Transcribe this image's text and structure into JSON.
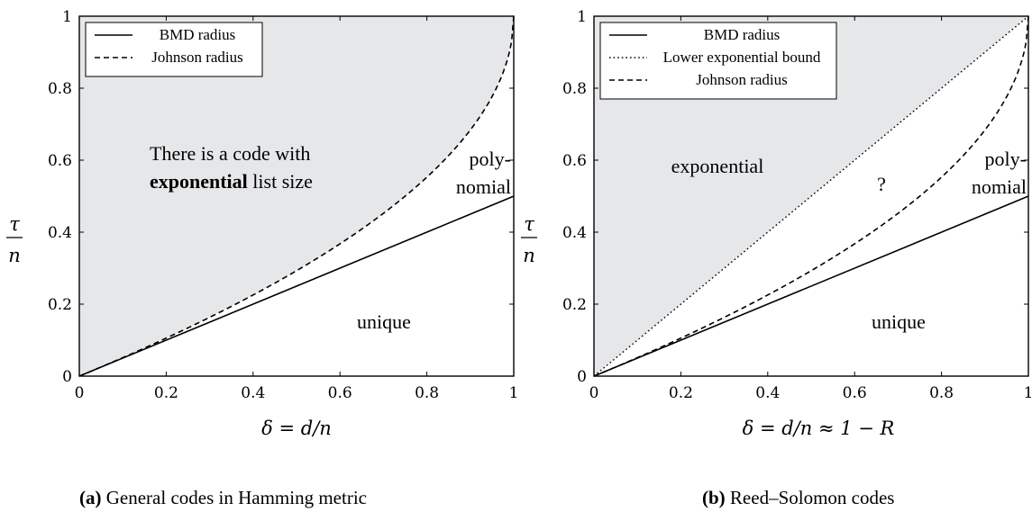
{
  "chart_data": [
    {
      "id": "a",
      "type": "line",
      "caption_tag": "(a)",
      "caption_text": "General codes in Hamming metric",
      "xlabel": "δ = d/n",
      "ylabel_num": "τ",
      "ylabel_den": "n",
      "xlim": [
        0,
        1
      ],
      "ylim": [
        0,
        1
      ],
      "x_ticks": [
        "0",
        "0.2",
        "0.4",
        "0.6",
        "0.8",
        "1"
      ],
      "y_ticks": [
        "0",
        "0.2",
        "0.4",
        "0.6",
        "0.8",
        "1"
      ],
      "legend": [
        "BMD radius",
        "Johnson radius"
      ],
      "legend_position": "top-left",
      "series": [
        {
          "name": "BMD radius",
          "style": "solid",
          "x": [
            0,
            1
          ],
          "y": [
            0,
            0.5
          ]
        },
        {
          "name": "Johnson radius",
          "style": "dashed",
          "function": "1 - sqrt(1 - x)"
        }
      ],
      "shaded_region": "above Johnson radius",
      "annotations": {
        "exponential_line1": "There is a code with",
        "exponential_bold": "exponential",
        "exponential_rest": " list size",
        "poly_line1": "poly-",
        "poly_line2": "nomial",
        "unique": "unique"
      }
    },
    {
      "id": "b",
      "type": "line",
      "caption_tag": "(b)",
      "caption_text": "Reed–Solomon codes",
      "xlabel": "δ = d/n ≈ 1 − R",
      "ylabel_num": "τ",
      "ylabel_den": "n",
      "xlim": [
        0,
        1
      ],
      "ylim": [
        0,
        1
      ],
      "x_ticks": [
        "0",
        "0.2",
        "0.4",
        "0.6",
        "0.8",
        "1"
      ],
      "y_ticks": [
        "0",
        "0.2",
        "0.4",
        "0.6",
        "0.8",
        "1"
      ],
      "legend": [
        "BMD radius",
        "Lower exponential bound",
        "Johnson radius"
      ],
      "legend_position": "top-left",
      "series": [
        {
          "name": "BMD radius",
          "style": "solid",
          "x": [
            0,
            1
          ],
          "y": [
            0,
            0.5
          ]
        },
        {
          "name": "Lower exponential bound",
          "style": "dotted",
          "x": [
            0,
            1
          ],
          "y": [
            0,
            1
          ]
        },
        {
          "name": "Johnson radius",
          "style": "dashed",
          "function": "1 - sqrt(1 - x)"
        }
      ],
      "shaded_region": "above lower exponential bound",
      "annotations": {
        "exponential": "exponential",
        "question": "?",
        "poly_line1": "poly-",
        "poly_line2": "nomial",
        "unique": "unique"
      }
    }
  ]
}
